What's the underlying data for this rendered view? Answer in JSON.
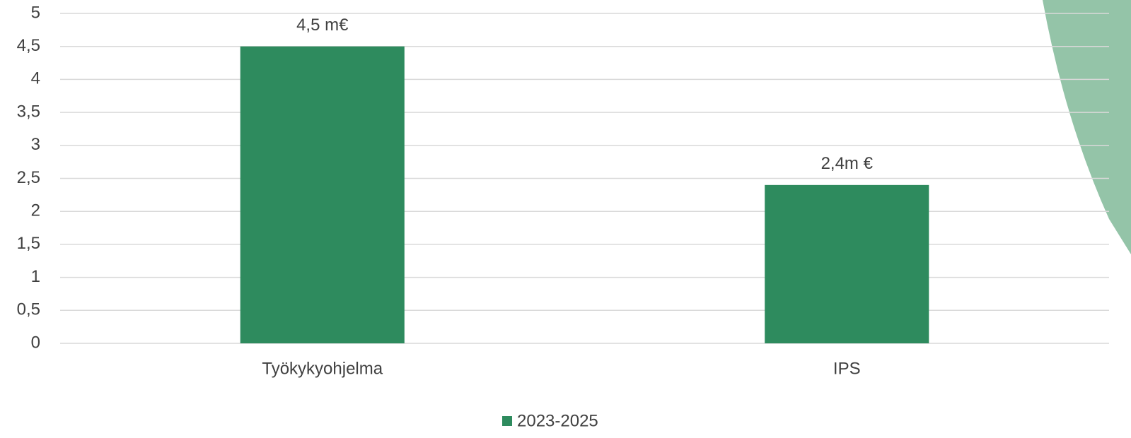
{
  "chart_data": {
    "type": "bar",
    "categories": [
      "Työkykyohjelma",
      "IPS"
    ],
    "series": [
      {
        "name": "2023-2025",
        "color": "#2e8b5e",
        "values": [
          4.5,
          2.4
        ],
        "value_labels": [
          "4,5 m€",
          "2,4m €"
        ]
      }
    ],
    "ylim": [
      0,
      5
    ],
    "yticks": [
      0,
      {
        "value": 0.5,
        "label": "0,5"
      },
      1,
      {
        "value": 1.5,
        "label": "1,5"
      },
      2,
      {
        "value": 2.5,
        "label": "2,5"
      },
      3,
      {
        "value": 3.5,
        "label": "3,5"
      },
      4,
      {
        "value": 4.5,
        "label": "4,5"
      },
      5
    ],
    "grid": true,
    "legend": "bottom"
  }
}
